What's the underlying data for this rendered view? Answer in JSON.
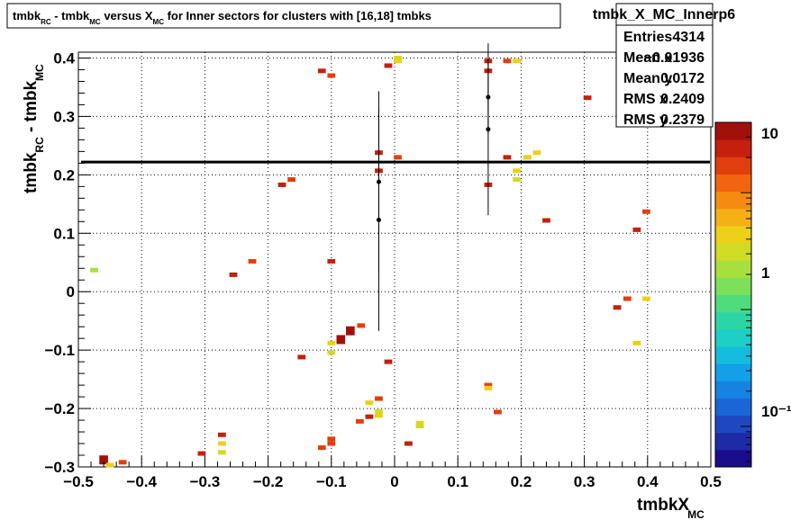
{
  "chart_data": {
    "type": "heatmap",
    "title": {
      "parts": [
        "tmbk",
        "RC",
        " - tmbk",
        "MC",
        " versus X",
        "MC",
        " for Inner sectors for clusters with [16,18] tmbks"
      ]
    },
    "xlabel": {
      "main": "tmbkX",
      "sub": "MC"
    },
    "ylabel": {
      "main": "tmbk",
      "sub": "RC",
      "rest": " - tmbk",
      "sub2": "MC"
    },
    "xlim": [
      -0.5,
      0.5
    ],
    "ylim": [
      -0.3,
      0.41
    ],
    "x_ticks": [
      "−0.5",
      "−0.4",
      "−0.3",
      "−0.2",
      "−0.1",
      "0",
      "0.1",
      "0.2",
      "0.3",
      "0.4",
      "0.5"
    ],
    "y_ticks": [
      "−0.3",
      "−0.2",
      "−0.1",
      "0",
      "0.1",
      "0.2",
      "0.3",
      "0.4"
    ],
    "grid": true,
    "z_scale": "log",
    "z_ticks": [
      "10",
      "1",
      "10⁻¹"
    ],
    "stats": {
      "name": "tmbk_X_MC_Innerp6",
      "rows": [
        {
          "label": "Entries",
          "value": "4314"
        },
        {
          "label": "Mean x",
          "value": "−0.01936"
        },
        {
          "label": "Mean y",
          "value": "0.0172"
        },
        {
          "label": "RMS x",
          "value": "0.2409"
        },
        {
          "label": "RMS y",
          "value": "0.2379"
        }
      ]
    },
    "reference_line_y": 0.222,
    "cells": [
      {
        "x": -0.475,
        "y": 0.037,
        "z": 2
      },
      {
        "x": -0.46,
        "y": -0.288,
        "z": 40
      },
      {
        "x": -0.45,
        "y": -0.297,
        "z": 5
      },
      {
        "x": -0.43,
        "y": -0.292,
        "z": 20
      },
      {
        "x": -0.305,
        "y": -0.277,
        "z": 25
      },
      {
        "x": -0.273,
        "y": -0.245,
        "z": 25
      },
      {
        "x": -0.273,
        "y": -0.26,
        "z": 4
      },
      {
        "x": -0.273,
        "y": -0.275,
        "z": 3
      },
      {
        "x": -0.255,
        "y": 0.029,
        "z": 25
      },
      {
        "x": -0.225,
        "y": 0.052,
        "z": 15
      },
      {
        "x": -0.178,
        "y": 0.183,
        "z": 25
      },
      {
        "x": -0.163,
        "y": 0.192,
        "z": 15
      },
      {
        "x": -0.147,
        "y": -0.112,
        "z": 25
      },
      {
        "x": -0.115,
        "y": -0.267,
        "z": 15
      },
      {
        "x": -0.115,
        "y": 0.378,
        "z": 25
      },
      {
        "x": -0.1,
        "y": 0.37,
        "z": 15
      },
      {
        "x": -0.1,
        "y": 0.052,
        "z": 25
      },
      {
        "x": -0.1,
        "y": -0.088,
        "z": 5
      },
      {
        "x": -0.1,
        "y": -0.104,
        "z": 3
      },
      {
        "x": -0.1,
        "y": -0.252,
        "z": 15
      },
      {
        "x": -0.1,
        "y": -0.26,
        "z": 15
      },
      {
        "x": -0.085,
        "y": -0.082,
        "z": 35
      },
      {
        "x": -0.07,
        "y": -0.067,
        "z": 35
      },
      {
        "x": -0.053,
        "y": -0.058,
        "z": 15
      },
      {
        "x": -0.055,
        "y": -0.222,
        "z": 15
      },
      {
        "x": -0.04,
        "y": -0.19,
        "z": 5
      },
      {
        "x": -0.04,
        "y": -0.214,
        "z": 25
      },
      {
        "x": -0.025,
        "y": -0.183,
        "z": 15
      },
      {
        "x": -0.025,
        "y": -0.205,
        "z": 3
      },
      {
        "x": -0.025,
        "y": -0.212,
        "z": 5
      },
      {
        "x": -0.025,
        "y": 0.238,
        "z": 25
      },
      {
        "x": -0.025,
        "y": 0.207,
        "z": 25
      },
      {
        "x": -0.01,
        "y": 0.387,
        "z": 25
      },
      {
        "x": -0.01,
        "y": -0.12,
        "z": 25
      },
      {
        "x": 0.005,
        "y": 0.4,
        "z": 3
      },
      {
        "x": 0.005,
        "y": 0.395,
        "z": 5
      },
      {
        "x": 0.005,
        "y": 0.23,
        "z": 15
      },
      {
        "x": 0.022,
        "y": -0.26,
        "z": 25
      },
      {
        "x": 0.04,
        "y": -0.225,
        "z": 5
      },
      {
        "x": 0.04,
        "y": -0.23,
        "z": 3
      },
      {
        "x": 0.148,
        "y": 0.395,
        "z": 25
      },
      {
        "x": 0.148,
        "y": 0.378,
        "z": 25
      },
      {
        "x": 0.148,
        "y": 0.183,
        "z": 25
      },
      {
        "x": 0.148,
        "y": -0.16,
        "z": 15
      },
      {
        "x": 0.148,
        "y": -0.165,
        "z": 5
      },
      {
        "x": 0.163,
        "y": -0.206,
        "z": 15
      },
      {
        "x": 0.178,
        "y": 0.395,
        "z": 15
      },
      {
        "x": 0.178,
        "y": 0.23,
        "z": 25
      },
      {
        "x": 0.193,
        "y": 0.395,
        "z": 5
      },
      {
        "x": 0.193,
        "y": 0.207,
        "z": 5
      },
      {
        "x": 0.193,
        "y": 0.192,
        "z": 3
      },
      {
        "x": 0.21,
        "y": 0.23,
        "z": 5
      },
      {
        "x": 0.225,
        "y": 0.238,
        "z": 5
      },
      {
        "x": 0.24,
        "y": 0.122,
        "z": 25
      },
      {
        "x": 0.305,
        "y": 0.332,
        "z": 25
      },
      {
        "x": 0.352,
        "y": -0.027,
        "z": 25
      },
      {
        "x": 0.368,
        "y": -0.012,
        "z": 15
      },
      {
        "x": 0.383,
        "y": 0.106,
        "z": 25
      },
      {
        "x": 0.383,
        "y": -0.088,
        "z": 5
      },
      {
        "x": 0.398,
        "y": 0.137,
        "z": 15
      },
      {
        "x": 0.398,
        "y": -0.012,
        "z": 5
      }
    ],
    "profile_points": [
      {
        "x": -0.025,
        "y": 0.123,
        "y_err": 0.19
      },
      {
        "x": -0.025,
        "y": 0.188,
        "y_err": 0.155
      },
      {
        "x": 0.148,
        "y": 0.278,
        "y_err": 0.147
      },
      {
        "x": 0.148,
        "y": 0.333,
        "y_err": 0.062
      }
    ]
  }
}
